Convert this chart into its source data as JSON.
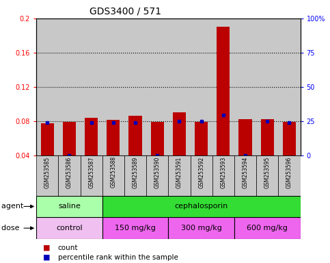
{
  "title": "GDS3400 / 571",
  "samples": [
    "GSM253585",
    "GSM253586",
    "GSM253587",
    "GSM253588",
    "GSM253589",
    "GSM253590",
    "GSM253591",
    "GSM253592",
    "GSM253593",
    "GSM253594",
    "GSM253595",
    "GSM253596"
  ],
  "count_values": [
    0.077,
    0.079,
    0.084,
    0.081,
    0.086,
    0.079,
    0.09,
    0.079,
    0.19,
    0.082,
    0.082,
    0.079
  ],
  "percentile_values_left": [
    0.0784,
    0.04,
    0.0784,
    0.0784,
    0.0784,
    0.04,
    0.08,
    0.08,
    0.087,
    0.04,
    0.08,
    0.0784
  ],
  "ylim_left": [
    0.04,
    0.2
  ],
  "ylim_right": [
    0,
    100
  ],
  "yticks_left": [
    0.04,
    0.08,
    0.12,
    0.16,
    0.2
  ],
  "yticks_right": [
    0,
    25,
    50,
    75,
    100
  ],
  "ytick_labels_right": [
    "0",
    "25",
    "50",
    "75",
    "100%"
  ],
  "bar_color": "#BB0000",
  "percentile_color": "#0000BB",
  "bg_color": "#C8C8C8",
  "agent_groups": [
    {
      "label": "saline",
      "start": 0,
      "end": 3,
      "color": "#AAFFAA"
    },
    {
      "label": "cephalosporin",
      "start": 3,
      "end": 12,
      "color": "#33DD33"
    }
  ],
  "dose_groups": [
    {
      "label": "control",
      "start": 0,
      "end": 3,
      "color": "#F0C0F0"
    },
    {
      "label": "150 mg/kg",
      "start": 3,
      "end": 6,
      "color": "#EE66EE"
    },
    {
      "label": "300 mg/kg",
      "start": 6,
      "end": 9,
      "color": "#EE66EE"
    },
    {
      "label": "600 mg/kg",
      "start": 9,
      "end": 12,
      "color": "#EE66EE"
    }
  ],
  "legend_count_label": "count",
  "legend_pct_label": "percentile rank within the sample",
  "agent_label": "agent",
  "dose_label": "dose"
}
